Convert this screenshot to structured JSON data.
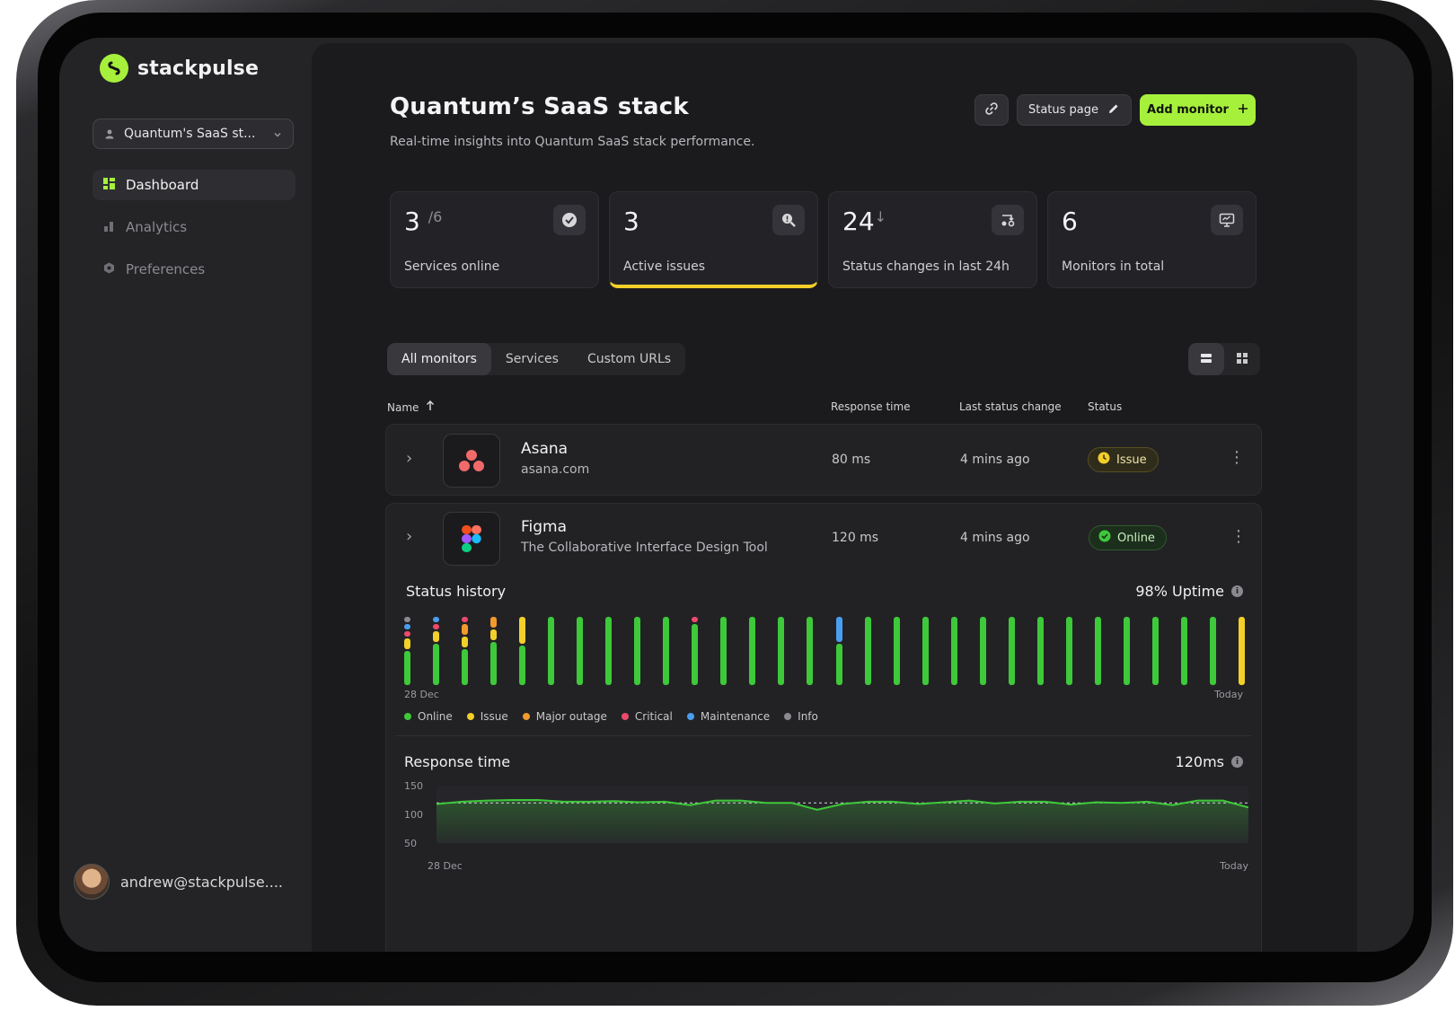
{
  "app": {
    "name": "stackpulse"
  },
  "sidebar": {
    "workspace": "Quantum's SaaS st...",
    "items": [
      {
        "label": "Dashboard",
        "icon": "dashboard-icon",
        "active": true
      },
      {
        "label": "Analytics",
        "icon": "bar-chart-icon",
        "active": false
      },
      {
        "label": "Preferences",
        "icon": "settings-icon",
        "active": false
      }
    ],
    "user_email": "andrew@stackpulse...."
  },
  "header": {
    "title": "Quantum’s SaaS stack",
    "subtitle": "Real-time insights into Quantum SaaS stack performance.",
    "status_page_label": "Status page",
    "add_monitor_label": "Add monitor"
  },
  "stats": [
    {
      "value": "3",
      "suffix": "/6",
      "label": "Services online",
      "icon": "check-circle-icon"
    },
    {
      "value": "3",
      "suffix": "",
      "label": "Active issues",
      "icon": "search-alert-icon"
    },
    {
      "value": "24",
      "suffix": "↓",
      "label": "Status changes in last 24h",
      "icon": "status-change-icon"
    },
    {
      "value": "6",
      "suffix": "",
      "label": "Monitors in total",
      "icon": "monitor-icon"
    }
  ],
  "tabs": [
    "All monitors",
    "Services",
    "Custom URLs"
  ],
  "table": {
    "headers": {
      "name": "Name",
      "response": "Response time",
      "last_change": "Last status change",
      "status": "Status"
    },
    "rows": [
      {
        "name": "Asana",
        "sub": "asana.com",
        "response": "80 ms",
        "last_change": "4 mins ago",
        "status": "Issue"
      },
      {
        "name": "Figma",
        "sub": "The Collaborative Interface Design Tool",
        "response": "120 ms",
        "last_change": "4 mins ago",
        "status": "Online"
      }
    ]
  },
  "status_history": {
    "title": "Status history",
    "uptime": "98% Uptime",
    "start_label": "28 Dec",
    "end_label": "Today",
    "legend": [
      {
        "label": "Online",
        "color": "#3ec93a"
      },
      {
        "label": "Issue",
        "color": "#f2cf29"
      },
      {
        "label": "Major outage",
        "color": "#f29a2e"
      },
      {
        "label": "Critical",
        "color": "#ec4a6c"
      },
      {
        "label": "Maintenance",
        "color": "#4a9ef0"
      },
      {
        "label": "Info",
        "color": "#8a8a90"
      }
    ],
    "days": [
      [
        "info",
        "maintenance",
        "critical",
        "issue",
        "online"
      ],
      [
        "maintenance",
        "critical",
        "issue",
        "online"
      ],
      [
        "critical",
        "major",
        "issue",
        "online"
      ],
      [
        "major",
        "issue",
        "online"
      ],
      [
        "issue",
        "online"
      ],
      [
        "online"
      ],
      [
        "online"
      ],
      [
        "online"
      ],
      [
        "online"
      ],
      [
        "online"
      ],
      [
        "critical",
        "online"
      ],
      [
        "online"
      ],
      [
        "online"
      ],
      [
        "online"
      ],
      [
        "online"
      ],
      [
        "maintenance",
        "online"
      ],
      [
        "online"
      ],
      [
        "online"
      ],
      [
        "online"
      ],
      [
        "online"
      ],
      [
        "online"
      ],
      [
        "online"
      ],
      [
        "online"
      ],
      [
        "online"
      ],
      [
        "online"
      ],
      [
        "online"
      ],
      [
        "online"
      ],
      [
        "online"
      ],
      [
        "online"
      ],
      [
        "issue"
      ]
    ]
  },
  "response_time": {
    "title": "Response time",
    "current": "120ms",
    "start_label": "28 Dec",
    "end_label": "Today"
  },
  "chart_data": {
    "type": "area",
    "title": "Response time",
    "yticks": [
      150,
      100,
      50
    ],
    "ylim": [
      50,
      150
    ],
    "x_start": "28 Dec",
    "x_end": "Today",
    "reference_line": 120,
    "values": [
      118,
      122,
      124,
      125,
      125,
      122,
      122,
      123,
      121,
      122,
      116,
      124,
      124,
      120,
      120,
      108,
      118,
      122,
      122,
      118,
      121,
      124,
      119,
      122,
      122,
      117,
      121,
      120,
      122,
      116,
      124,
      124,
      112
    ]
  }
}
